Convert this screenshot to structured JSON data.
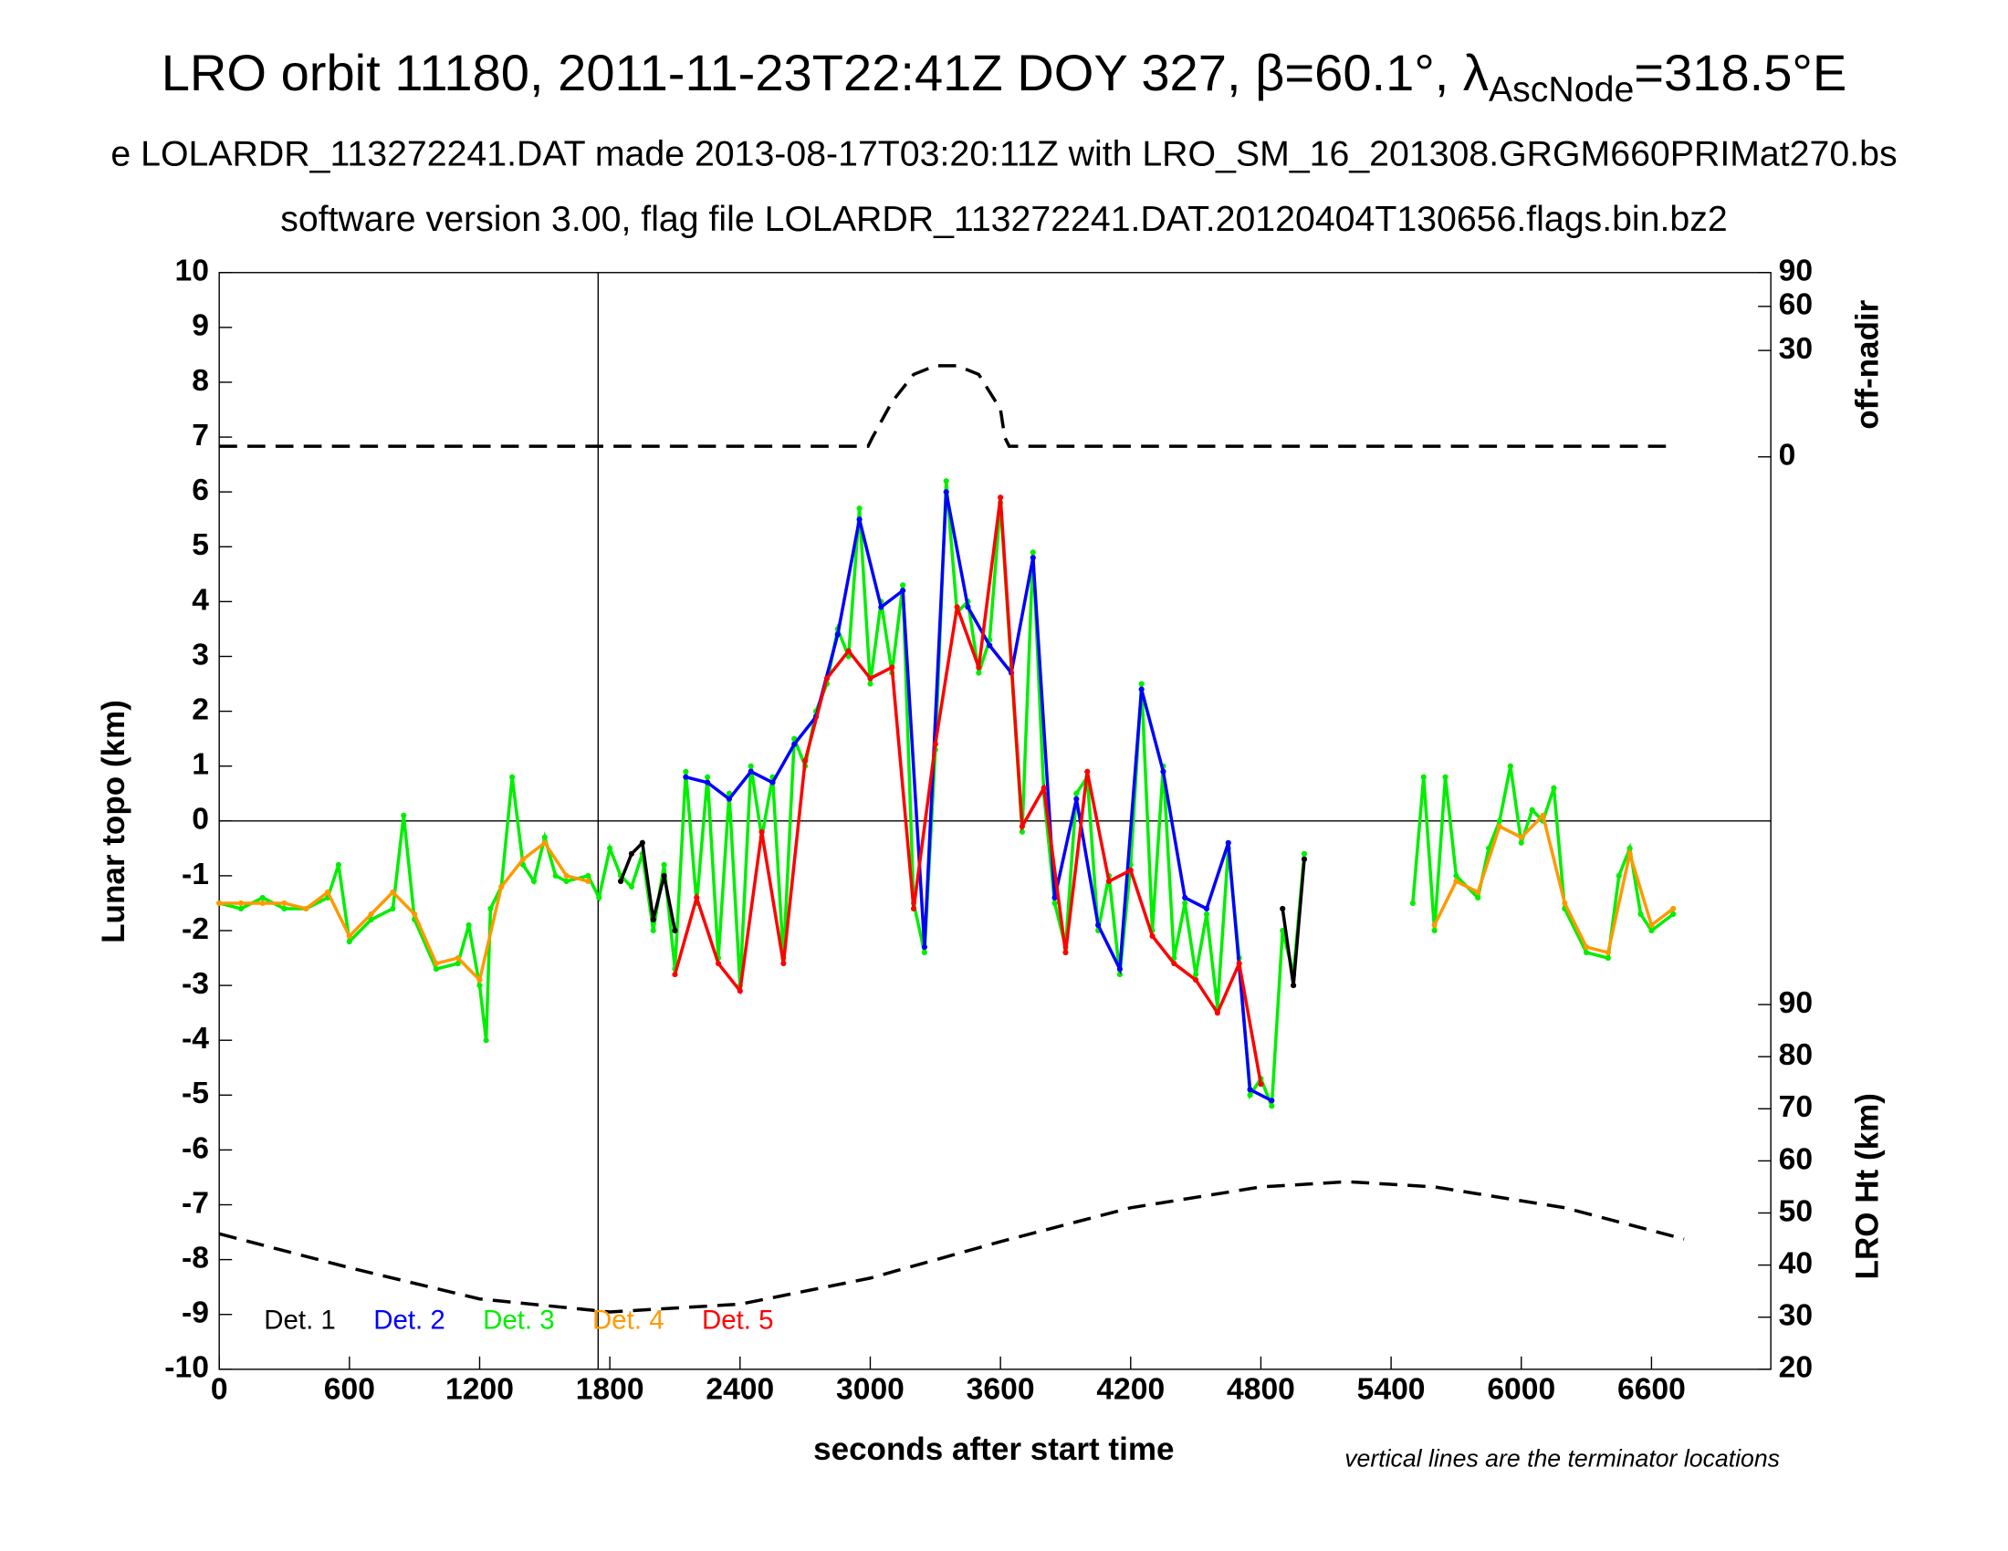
{
  "chart_data": {
    "type": "scatter",
    "title": [
      "LRO orbit 11180, 2011-11-23T22:41Z DOY 327, β=60.1°, λ",
      "AscNode",
      "=318.5°E"
    ],
    "subtitle": [
      "e LOLARDR_113272241.DAT made 2013-08-17T03:20:11Z with LRO_SM_16_201308.GRGM660PRIMat270.bs",
      "software version 3.00, flag file LOLARDR_113272241.DAT.20120404T130656.flags.bin.bz2"
    ],
    "xlabel": "seconds after start time",
    "ylabel": "Lunar topo (km)",
    "y2label": "off-nadir",
    "y3label": "LRO Ht (km)",
    "annotation": "vertical lines are the terminator locations",
    "xlim": [
      0,
      7150
    ],
    "xticks": [
      0,
      600,
      1200,
      1800,
      2400,
      3000,
      3600,
      4200,
      4800,
      5400,
      6000,
      6600
    ],
    "ylim": [
      -10,
      10
    ],
    "yticks": [
      -10,
      -9,
      -8,
      -7,
      -6,
      -5,
      -4,
      -3,
      -2,
      -1,
      0,
      1,
      2,
      3,
      4,
      5,
      6,
      7,
      8,
      9,
      10
    ],
    "y2lim": [
      0,
      90
    ],
    "y2scale": "sqrt",
    "y2ticks": [
      0,
      30,
      60,
      90
    ],
    "y3lim": [
      20,
      90
    ],
    "y3ticks": [
      20,
      30,
      40,
      50,
      60,
      70,
      80,
      90
    ],
    "terminators": [
      1746
    ],
    "zero_line": 0,
    "series": [
      {
        "name": "Det. 1",
        "color": "#000000",
        "x": [
          1850,
          1900,
          1950,
          2000,
          2050,
          2100,
          4000,
          4900,
          4950,
          5000
        ],
        "values": [
          -1.1,
          -0.6,
          -0.4,
          -1.8,
          -1.0,
          -2.0,
          null,
          -1.6,
          -3.0,
          -0.7
        ]
      },
      {
        "name": "Det. 2",
        "color": "#0000ff",
        "x": [
          2150,
          2250,
          2350,
          2450,
          2550,
          2650,
          2750,
          2850,
          2950,
          3050,
          3150,
          3250,
          3350,
          3450,
          3550,
          3650,
          3750,
          3850,
          3950,
          4050,
          4150,
          4250,
          4350,
          4450,
          4550,
          4650,
          4750,
          4850
        ],
        "values": [
          0.8,
          0.7,
          0.4,
          0.9,
          0.7,
          1.4,
          1.9,
          3.4,
          5.5,
          3.9,
          4.2,
          -2.3,
          6.0,
          3.9,
          3.2,
          2.7,
          4.8,
          -1.4,
          0.4,
          -1.9,
          -2.7,
          2.4,
          0.9,
          -1.4,
          -1.6,
          -0.4,
          -4.9,
          -5.1
        ]
      },
      {
        "name": "Det. 3",
        "color": "#00ee00",
        "x": [
          0,
          100,
          200,
          300,
          400,
          500,
          550,
          600,
          700,
          800,
          850,
          900,
          1000,
          1100,
          1150,
          1200,
          1230,
          1250,
          1300,
          1350,
          1400,
          1450,
          1500,
          1550,
          1600,
          1700,
          1750,
          1800,
          1850,
          1900,
          1950,
          2000,
          2050,
          2100,
          2150,
          2200,
          2250,
          2300,
          2350,
          2400,
          2450,
          2500,
          2550,
          2600,
          2650,
          2700,
          2750,
          2800,
          2850,
          2900,
          2950,
          3000,
          3050,
          3100,
          3150,
          3200,
          3250,
          3300,
          3350,
          3400,
          3450,
          3500,
          3550,
          3600,
          3650,
          3700,
          3750,
          3800,
          3850,
          3900,
          3950,
          4000,
          4050,
          4100,
          4150,
          4200,
          4250,
          4300,
          4350,
          4400,
          4450,
          4500,
          4550,
          4600,
          4650,
          4700,
          4750,
          4800,
          4850,
          4900,
          4950,
          5000,
          5200,
          5500,
          5550,
          5600,
          5650,
          5700,
          5800,
          5850,
          5900,
          5950,
          6000,
          6050,
          6100,
          6150,
          6200,
          6300,
          6400,
          6450,
          6500,
          6550,
          6600,
          6700
        ],
        "values": [
          -1.5,
          -1.6,
          -1.4,
          -1.6,
          -1.6,
          -1.4,
          -0.8,
          -2.2,
          -1.8,
          -1.6,
          0.1,
          -1.8,
          -2.7,
          -2.6,
          -1.9,
          -3.0,
          -4.0,
          -1.6,
          -1.2,
          0.8,
          -0.8,
          -1.1,
          -0.3,
          -1.0,
          -1.1,
          -1.0,
          -1.4,
          -0.5,
          -1.0,
          -1.2,
          -0.6,
          -2.0,
          -0.8,
          -2.7,
          0.9,
          -1.5,
          0.8,
          -2.5,
          0.5,
          -3.0,
          1.0,
          -0.3,
          0.8,
          -2.5,
          1.5,
          1.0,
          2.0,
          2.5,
          3.5,
          3.0,
          5.7,
          2.5,
          4.0,
          2.7,
          4.3,
          -1.5,
          -2.4,
          1.3,
          6.2,
          3.8,
          4.0,
          2.7,
          3.3,
          5.8,
          2.8,
          -0.2,
          4.9,
          0.5,
          -1.5,
          -2.3,
          0.5,
          0.8,
          -2.0,
          -1.0,
          -2.8,
          -0.8,
          2.5,
          -2.0,
          1.0,
          -2.5,
          -1.5,
          -2.8,
          -1.7,
          -3.4,
          -0.5,
          -2.5,
          -5.0,
          -4.7,
          -5.2,
          -2.0,
          -2.8,
          -0.6,
          null,
          -1.5,
          0.8,
          -2.0,
          0.8,
          -1.0,
          -1.4,
          -0.5,
          0.0,
          1.0,
          -0.4,
          0.2,
          0.0,
          0.6,
          -1.6,
          -2.4,
          -2.5,
          -1.0,
          -0.5,
          -1.7,
          -2.0,
          -1.7
        ]
      },
      {
        "name": "Det. 4",
        "color": "#ff9900",
        "x": [
          0,
          100,
          200,
          300,
          400,
          500,
          600,
          700,
          800,
          900,
          1000,
          1100,
          1200,
          1300,
          1400,
          1500,
          1600,
          1700,
          5000,
          5600,
          5700,
          5800,
          5900,
          6000,
          6100,
          6200,
          6300,
          6400,
          6500,
          6600,
          6700
        ],
        "values": [
          -1.5,
          -1.5,
          -1.5,
          -1.5,
          -1.6,
          -1.3,
          -2.1,
          -1.7,
          -1.3,
          -1.7,
          -2.6,
          -2.5,
          -2.9,
          -1.2,
          -0.7,
          -0.4,
          -1.0,
          -1.1,
          null,
          -1.9,
          -1.1,
          -1.3,
          -0.1,
          -0.3,
          0.1,
          -1.5,
          -2.3,
          -2.4,
          -0.6,
          -1.9,
          -1.6
        ]
      },
      {
        "name": "Det. 5",
        "color": "#ff0000",
        "x": [
          2100,
          2200,
          2300,
          2400,
          2500,
          2600,
          2700,
          2800,
          2900,
          3000,
          3100,
          3200,
          3300,
          3400,
          3500,
          3600,
          3700,
          3800,
          3900,
          4000,
          4100,
          4200,
          4300,
          4400,
          4500,
          4600,
          4700,
          4800
        ],
        "values": [
          -2.8,
          -1.4,
          -2.6,
          -3.1,
          -0.2,
          -2.6,
          1.1,
          2.6,
          3.1,
          2.6,
          2.8,
          -1.6,
          1.4,
          3.9,
          2.8,
          5.9,
          -0.1,
          0.6,
          -2.4,
          0.9,
          -1.1,
          -0.9,
          -2.1,
          -2.6,
          -2.9,
          -3.5,
          -2.6,
          -4.8
        ]
      }
    ],
    "offnadir": {
      "color": "#000000",
      "x": [
        0,
        1500,
        2990,
        3010,
        3100,
        3200,
        3300,
        3400,
        3500,
        3600,
        3620,
        3640,
        6700
      ],
      "values": [
        0.3,
        0.3,
        0.3,
        1,
        8,
        18,
        22,
        22,
        18,
        6,
        1,
        0.3,
        0.3
      ]
    },
    "height": {
      "color": "#000000",
      "x": [
        0,
        600,
        1200,
        1800,
        2400,
        3000,
        3600,
        4200,
        4800,
        5200,
        5600,
        6200,
        6750
      ],
      "values": [
        46,
        39.5,
        33.5,
        31,
        32.5,
        37.5,
        44.5,
        51,
        55,
        56,
        55,
        51,
        45
      ]
    }
  }
}
